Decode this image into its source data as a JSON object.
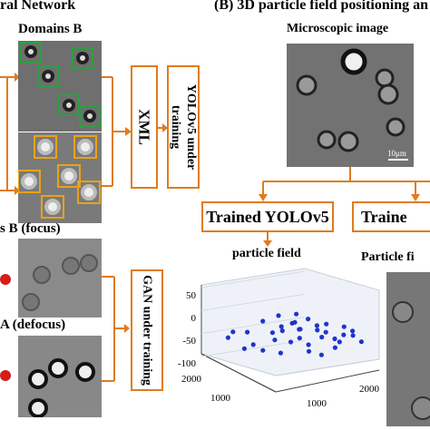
{
  "panel_a": {
    "title_fragment": "ral Network",
    "domains_b": "Domains B",
    "domains_b_focus": "s B (focus)",
    "domains_a_defocus": "A (defocus)",
    "xml": "XML",
    "yolo_training": "YOLOv5 under training",
    "gan_training": "GAN under training"
  },
  "panel_b": {
    "title": "(B) 3D particle field positioning an",
    "microscopic_image": "Microscopic image",
    "scale_bar": "10μm",
    "trained_yolo": "Trained YOLOv5",
    "trained_cut": "Traine",
    "particle_field": "particle field",
    "particle_field_cut": "Particle fi"
  },
  "colors": {
    "arrow": "#e07b1e",
    "green_box": "#2e9e3e",
    "yellow_box": "#e8a317",
    "scatter_point": "#1f35c9"
  },
  "chart_data": {
    "type": "scatter",
    "title": "particle field",
    "z_ticks": [
      "50",
      "0",
      "-50",
      "-100"
    ],
    "z_range": [
      -100,
      50
    ],
    "x_ticks": [
      "2000",
      "1000"
    ],
    "y_ticks": [
      "1000",
      "2000"
    ],
    "grid": true,
    "points": [
      {
        "x": 1700,
        "y": 300,
        "z": -60
      },
      {
        "x": 1500,
        "y": 250,
        "z": -40
      },
      {
        "x": 1600,
        "y": 600,
        "z": -50
      },
      {
        "x": 1300,
        "y": 500,
        "z": -70
      },
      {
        "x": 1200,
        "y": 800,
        "z": -45
      },
      {
        "x": 1100,
        "y": 900,
        "z": -30
      },
      {
        "x": 1000,
        "y": 700,
        "z": -55
      },
      {
        "x": 950,
        "y": 1000,
        "z": -20
      },
      {
        "x": 900,
        "y": 1100,
        "z": -35
      },
      {
        "x": 850,
        "y": 900,
        "z": -60
      },
      {
        "x": 800,
        "y": 1200,
        "z": -10
      },
      {
        "x": 750,
        "y": 1000,
        "z": -50
      },
      {
        "x": 700,
        "y": 1300,
        "z": -25
      },
      {
        "x": 650,
        "y": 1100,
        "z": -65
      },
      {
        "x": 600,
        "y": 1400,
        "z": -40
      },
      {
        "x": 550,
        "y": 1200,
        "z": -30
      },
      {
        "x": 500,
        "y": 1500,
        "z": -55
      },
      {
        "x": 450,
        "y": 1300,
        "z": -15
      },
      {
        "x": 400,
        "y": 1600,
        "z": -45
      },
      {
        "x": 350,
        "y": 1400,
        "z": -70
      },
      {
        "x": 300,
        "y": 1700,
        "z": -35
      },
      {
        "x": 250,
        "y": 1500,
        "z": -20
      },
      {
        "x": 200,
        "y": 1800,
        "z": -60
      },
      {
        "x": 150,
        "y": 1600,
        "z": -40
      },
      {
        "x": 1400,
        "y": 400,
        "z": -80
      },
      {
        "x": 1250,
        "y": 650,
        "z": -85
      },
      {
        "x": 1050,
        "y": 850,
        "z": -90
      },
      {
        "x": 900,
        "y": 700,
        "z": 5
      },
      {
        "x": 700,
        "y": 900,
        "z": 10
      },
      {
        "x": 600,
        "y": 800,
        "z": -5
      },
      {
        "x": 500,
        "y": 1000,
        "z": -75
      },
      {
        "x": 300,
        "y": 1100,
        "z": -80
      },
      {
        "x": 1600,
        "y": 900,
        "z": -30
      },
      {
        "x": 1350,
        "y": 1100,
        "z": -50
      },
      {
        "x": 1150,
        "y": 1300,
        "z": -45
      },
      {
        "x": 850,
        "y": 1500,
        "z": -60
      },
      {
        "x": 650,
        "y": 1700,
        "z": -70
      }
    ]
  }
}
